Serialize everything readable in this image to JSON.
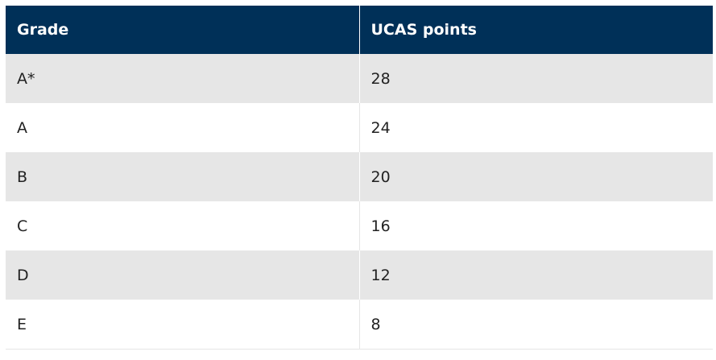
{
  "table": {
    "header": [
      "Grade",
      "UCAS points"
    ],
    "rows": [
      [
        "A*",
        28
      ],
      [
        "A",
        24
      ],
      [
        "B",
        20
      ],
      [
        "C",
        16
      ],
      [
        "D",
        12
      ],
      [
        "E",
        8
      ]
    ]
  }
}
